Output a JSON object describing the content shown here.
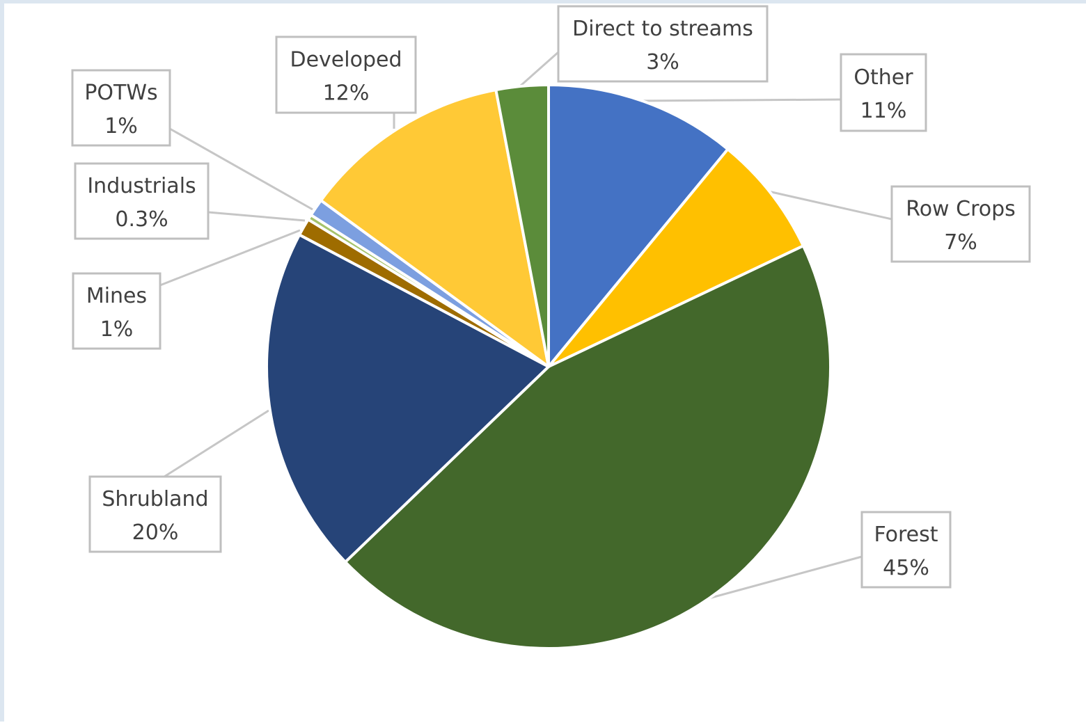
{
  "chart_data": {
    "type": "pie",
    "title": "",
    "start_angle_deg": 0,
    "direction": "clockwise",
    "slices": [
      {
        "name": "Other",
        "value": 11,
        "label_name": "Other",
        "label_value": "11%",
        "color": "#4472c4"
      },
      {
        "name": "Row Crops",
        "value": 7,
        "label_name": "Row Crops",
        "label_value": "7%",
        "color": "#ffc000"
      },
      {
        "name": "Forest",
        "value": 45,
        "label_name": "Forest",
        "label_value": "45%",
        "color": "#43682b"
      },
      {
        "name": "Shrubland",
        "value": 20,
        "label_name": "Shrubland",
        "label_value": "20%",
        "color": "#264478"
      },
      {
        "name": "Mines",
        "value": 1,
        "label_name": "Mines",
        "label_value": "1%",
        "color": "#9e6c00"
      },
      {
        "name": "Industrials",
        "value": 0.3,
        "label_name": "Industrials",
        "label_value": "0.3%",
        "color": "#a5c36b"
      },
      {
        "name": "POTWs",
        "value": 1,
        "label_name": "POTWs",
        "label_value": "1%",
        "color": "#7c9fe0"
      },
      {
        "name": "Developed",
        "value": 12,
        "label_name": "Developed",
        "label_value": "12%",
        "color": "#ffc936"
      },
      {
        "name": "Direct to streams",
        "value": 3,
        "label_name": "Direct to streams",
        "label_value": "3%",
        "color": "#5b8c3a"
      }
    ],
    "legend": "none",
    "data_labels": "callout boxes with category name and percentage"
  }
}
